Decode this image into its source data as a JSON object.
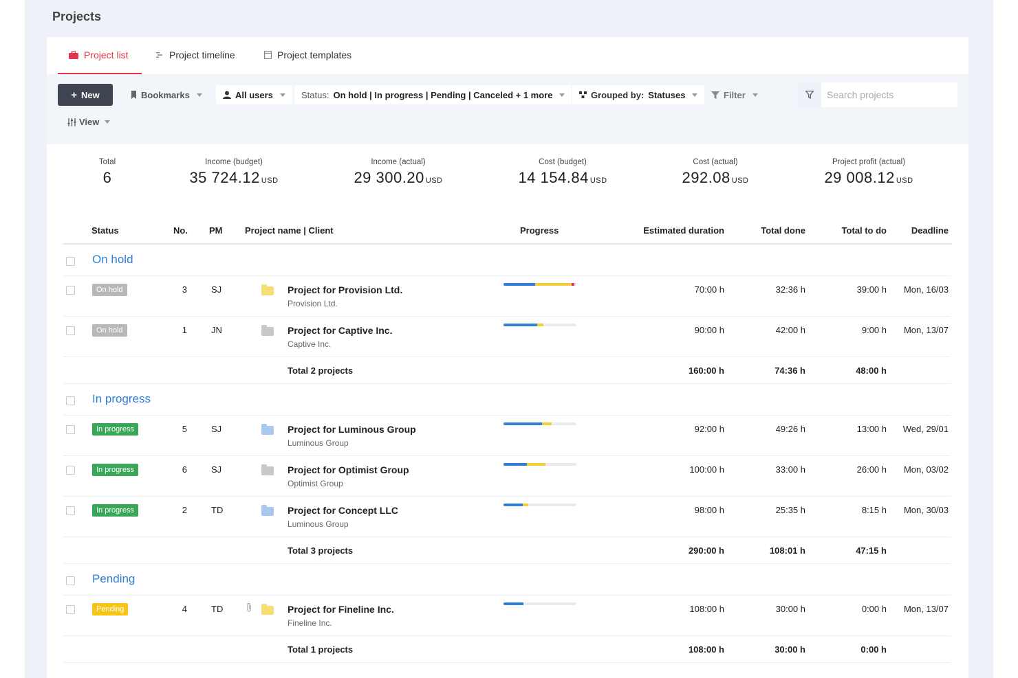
{
  "page_title": "Projects",
  "tabs": [
    {
      "label": "Project list",
      "icon": "briefcase-icon",
      "active": true
    },
    {
      "label": "Project timeline",
      "icon": "timeline-icon",
      "active": false
    },
    {
      "label": "Project templates",
      "icon": "template-icon",
      "active": false
    }
  ],
  "toolbar": {
    "new_label": "New",
    "bookmarks_label": "Bookmarks",
    "users_label": "All users",
    "status_prefix": "Status:",
    "status_value": "On hold | In progress | Pending | Canceled + 1 more",
    "grouped_prefix": "Grouped by:",
    "grouped_value": "Statuses",
    "filter_label": "Filter",
    "view_label": "View",
    "search_placeholder": "Search projects"
  },
  "stats": [
    {
      "label": "Total",
      "value": "6",
      "currency": ""
    },
    {
      "label": "Income (budget)",
      "value": "35 724.12",
      "currency": "USD"
    },
    {
      "label": "Income (actual)",
      "value": "29 300.20",
      "currency": "USD"
    },
    {
      "label": "Cost (budget)",
      "value": "14 154.84",
      "currency": "USD"
    },
    {
      "label": "Cost (actual)",
      "value": "292.08",
      "currency": "USD"
    },
    {
      "label": "Project profit (actual)",
      "value": "29 008.12",
      "currency": "USD"
    }
  ],
  "columns": {
    "status": "Status",
    "no": "No.",
    "pm": "PM",
    "name": "Project name | Client",
    "progress": "Progress",
    "estimated": "Estimated duration",
    "done": "Total done",
    "todo": "Total to do",
    "deadline": "Deadline"
  },
  "groups": [
    {
      "title": "On hold",
      "projects": [
        {
          "status": "On hold",
          "no": "3",
          "pm": "SJ",
          "name": "Project for Provision Ltd.",
          "client": "Provision Ltd.",
          "folder_color": "#f7de74",
          "progress": [
            0.43,
            0.5,
            0.04
          ],
          "estimated": "70:00 h",
          "done": "32:36 h",
          "todo": "39:00 h",
          "deadline": "Mon, 16/03"
        },
        {
          "status": "On hold",
          "no": "1",
          "pm": "JN",
          "name": "Project for Captive Inc.",
          "client": "Captive Inc.",
          "folder_color": "#c8c8c8",
          "progress": [
            0.46,
            0.09,
            0
          ],
          "estimated": "90:00 h",
          "done": "42:00 h",
          "todo": "9:00 h",
          "deadline": "Mon, 13/07"
        }
      ],
      "total": {
        "label": "Total 2 projects",
        "estimated": "160:00 h",
        "done": "74:36 h",
        "todo": "48:00 h"
      }
    },
    {
      "title": "In progress",
      "projects": [
        {
          "status": "In progress",
          "no": "5",
          "pm": "SJ",
          "name": "Project for Luminous Group",
          "client": "Luminous Group",
          "folder_color": "#a9c8ef",
          "progress": [
            0.53,
            0.13,
            0
          ],
          "estimated": "92:00 h",
          "done": "49:26 h",
          "todo": "13:00 h",
          "deadline": "Wed, 29/01"
        },
        {
          "status": "In progress",
          "no": "6",
          "pm": "SJ",
          "name": "Project for Optimist Group",
          "client": "Optimist Group",
          "folder_color": "#c8c8c8",
          "progress": [
            0.32,
            0.26,
            0
          ],
          "estimated": "100:00 h",
          "done": "33:00 h",
          "todo": "26:00 h",
          "deadline": "Mon, 03/02"
        },
        {
          "status": "In progress",
          "no": "2",
          "pm": "TD",
          "name": "Project for Concept LLC",
          "client": "Luminous Group",
          "folder_color": "#a9c8ef",
          "progress": [
            0.26,
            0.08,
            0
          ],
          "estimated": "98:00 h",
          "done": "25:35 h",
          "todo": "8:15 h",
          "deadline": "Mon, 30/03"
        }
      ],
      "total": {
        "label": "Total 3 projects",
        "estimated": "290:00 h",
        "done": "108:01 h",
        "todo": "47:15 h"
      }
    },
    {
      "title": "Pending",
      "projects": [
        {
          "status": "Pending",
          "no": "4",
          "pm": "TD",
          "name": "Project for Fineline Inc.",
          "client": "Fineline Inc.",
          "folder_color": "#f7de74",
          "attachment": true,
          "progress": [
            0.27,
            0,
            0
          ],
          "estimated": "108:00 h",
          "done": "30:00 h",
          "todo": "0:00 h",
          "deadline": "Mon, 13/07"
        }
      ],
      "total": {
        "label": "Total 1 projects",
        "estimated": "108:00 h",
        "done": "30:00 h",
        "todo": "0:00 h"
      }
    }
  ],
  "colors": {
    "accent": "#e0344a",
    "link": "#2f7ed8",
    "on_hold": "#b8b8b8",
    "in_progress": "#3aa657",
    "pending": "#f5c518",
    "progress_blue": "#2f7ed8",
    "progress_yellow": "#f3cf3b",
    "progress_red": "#e0344a"
  }
}
